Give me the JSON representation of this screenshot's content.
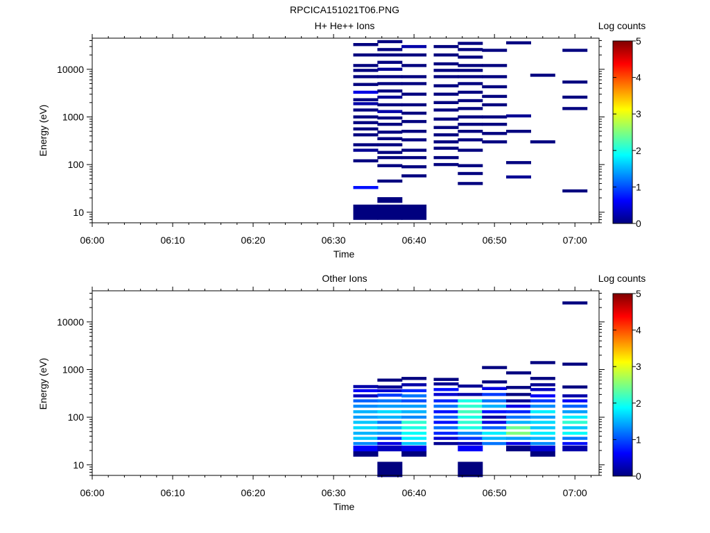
{
  "figure_title": "RPCICA151021T06.PNG",
  "colorbar": {
    "label": "Log counts",
    "ticks": [
      "0",
      "1",
      "2",
      "3",
      "4",
      "5"
    ],
    "colormap": [
      "#00007f",
      "#0000ff",
      "#00ffff",
      "#7fff7f",
      "#ffff00",
      "#ff0000",
      "#7f0000"
    ]
  },
  "chart_data": [
    {
      "type": "heatmap",
      "title": "H+ He++ Ions",
      "xlabel": "Time",
      "ylabel": "Energy (eV)",
      "xlim": [
        "06:00",
        "07:03"
      ],
      "ylim": [
        6,
        45000
      ],
      "yscale": "log",
      "x_tick_labels": [
        "06:00",
        "06:10",
        "06:20",
        "06:30",
        "06:40",
        "06:50",
        "07:00"
      ],
      "y_tick_labels": [
        "10",
        "100",
        "1000",
        "10000"
      ],
      "zlim": [
        0,
        5
      ],
      "columns": [
        "06:34",
        "06:37",
        "06:40",
        "06:44",
        "06:47",
        "06:50",
        "06:53",
        "06:56",
        "07:00"
      ],
      "cells": [
        [
          0,
          10,
          0
        ],
        [
          0,
          33,
          0.7
        ],
        [
          0,
          120,
          0
        ],
        [
          0,
          200,
          0.1
        ],
        [
          0,
          260,
          0
        ],
        [
          0,
          420,
          0
        ],
        [
          0,
          560,
          0
        ],
        [
          0,
          760,
          0
        ],
        [
          0,
          1000,
          0
        ],
        [
          0,
          1400,
          0
        ],
        [
          0,
          1900,
          0.2
        ],
        [
          0,
          2300,
          0
        ],
        [
          0,
          3300,
          0.5
        ],
        [
          0,
          4800,
          0
        ],
        [
          0,
          7000,
          0
        ],
        [
          0,
          9500,
          0
        ],
        [
          0,
          12000,
          0
        ],
        [
          0,
          20000,
          0
        ],
        [
          0,
          33000,
          0
        ],
        [
          1,
          10,
          0
        ],
        [
          1,
          18,
          0
        ],
        [
          1,
          45,
          0
        ],
        [
          1,
          95,
          0
        ],
        [
          1,
          140,
          0
        ],
        [
          1,
          180,
          0
        ],
        [
          1,
          260,
          0
        ],
        [
          1,
          350,
          0
        ],
        [
          1,
          480,
          0
        ],
        [
          1,
          700,
          0
        ],
        [
          1,
          950,
          0
        ],
        [
          1,
          1300,
          0.2
        ],
        [
          1,
          1800,
          0
        ],
        [
          1,
          2600,
          0.1
        ],
        [
          1,
          3500,
          0
        ],
        [
          1,
          5000,
          0
        ],
        [
          1,
          7000,
          0
        ],
        [
          1,
          10000,
          0.1
        ],
        [
          1,
          14000,
          0
        ],
        [
          1,
          20000,
          0
        ],
        [
          1,
          26000,
          0
        ],
        [
          1,
          38000,
          0
        ],
        [
          2,
          10,
          0
        ],
        [
          2,
          58,
          0
        ],
        [
          2,
          90,
          0
        ],
        [
          2,
          140,
          0
        ],
        [
          2,
          200,
          0
        ],
        [
          2,
          330,
          0
        ],
        [
          2,
          500,
          0
        ],
        [
          2,
          800,
          0
        ],
        [
          2,
          1200,
          0
        ],
        [
          2,
          1800,
          0
        ],
        [
          2,
          3000,
          0
        ],
        [
          2,
          5000,
          0
        ],
        [
          2,
          7000,
          0
        ],
        [
          2,
          12000,
          0
        ],
        [
          2,
          20000,
          0
        ],
        [
          2,
          30000,
          0.2
        ],
        [
          3,
          100,
          0
        ],
        [
          3,
          140,
          0
        ],
        [
          3,
          220,
          0
        ],
        [
          3,
          300,
          0
        ],
        [
          3,
          420,
          0
        ],
        [
          3,
          600,
          0
        ],
        [
          3,
          900,
          0
        ],
        [
          3,
          1400,
          0
        ],
        [
          3,
          2000,
          0
        ],
        [
          3,
          3000,
          0
        ],
        [
          3,
          4500,
          0
        ],
        [
          3,
          7000,
          0
        ],
        [
          3,
          9500,
          0
        ],
        [
          3,
          13000,
          0
        ],
        [
          3,
          20000,
          0
        ],
        [
          3,
          30000,
          0
        ],
        [
          4,
          40,
          0
        ],
        [
          4,
          65,
          0
        ],
        [
          4,
          95,
          0
        ],
        [
          4,
          200,
          0
        ],
        [
          4,
          330,
          0
        ],
        [
          4,
          500,
          0
        ],
        [
          4,
          700,
          0
        ],
        [
          4,
          1000,
          0
        ],
        [
          4,
          1500,
          0
        ],
        [
          4,
          2200,
          0
        ],
        [
          4,
          3300,
          0
        ],
        [
          4,
          5000,
          0
        ],
        [
          4,
          7000,
          0
        ],
        [
          4,
          9500,
          0
        ],
        [
          4,
          12000,
          0
        ],
        [
          4,
          18000,
          0
        ],
        [
          4,
          26000,
          0
        ],
        [
          4,
          35000,
          0
        ],
        [
          5,
          300,
          0
        ],
        [
          5,
          450,
          0
        ],
        [
          5,
          700,
          0
        ],
        [
          5,
          1000,
          0
        ],
        [
          5,
          1800,
          0
        ],
        [
          5,
          2700,
          0
        ],
        [
          5,
          4300,
          0
        ],
        [
          5,
          7000,
          0
        ],
        [
          5,
          12000,
          0
        ],
        [
          5,
          25000,
          0
        ],
        [
          6,
          55,
          0.1
        ],
        [
          6,
          110,
          0
        ],
        [
          6,
          500,
          0
        ],
        [
          6,
          1050,
          0.1
        ],
        [
          6,
          36000,
          0
        ],
        [
          7,
          300,
          0
        ],
        [
          7,
          7500,
          0
        ],
        [
          8,
          28,
          0
        ],
        [
          8,
          1500,
          0
        ],
        [
          8,
          2600,
          0
        ],
        [
          8,
          5400,
          0
        ],
        [
          8,
          25000,
          0
        ]
      ]
    },
    {
      "type": "heatmap",
      "title": "Other Ions",
      "xlabel": "Time",
      "ylabel": "Energy (eV)",
      "xlim": [
        "06:00",
        "07:03"
      ],
      "ylim": [
        6,
        45000
      ],
      "yscale": "log",
      "x_tick_labels": [
        "06:00",
        "06:10",
        "06:20",
        "06:30",
        "06:40",
        "06:50",
        "07:00"
      ],
      "y_tick_labels": [
        "10",
        "100",
        "1000",
        "10000"
      ],
      "zlim": [
        0,
        5
      ],
      "columns": [
        "06:34",
        "06:37",
        "06:40",
        "06:44",
        "06:47",
        "06:50",
        "06:53",
        "06:56",
        "07:00"
      ],
      "cells": [
        [
          0,
          17,
          0
        ],
        [
          0,
          22,
          0.6
        ],
        [
          0,
          28,
          1.3
        ],
        [
          0,
          36,
          1.6
        ],
        [
          0,
          46,
          1.5
        ],
        [
          0,
          60,
          1.7
        ],
        [
          0,
          78,
          1.6
        ],
        [
          0,
          100,
          1.4
        ],
        [
          0,
          130,
          1.5
        ],
        [
          0,
          170,
          1.3
        ],
        [
          0,
          220,
          1.1
        ],
        [
          0,
          280,
          0.3
        ],
        [
          0,
          360,
          0.6
        ],
        [
          0,
          440,
          0.2
        ],
        [
          1,
          8,
          0
        ],
        [
          1,
          22,
          0.3
        ],
        [
          1,
          28,
          0.5
        ],
        [
          1,
          36,
          0.9
        ],
        [
          1,
          46,
          1.4
        ],
        [
          1,
          60,
          1.5
        ],
        [
          1,
          78,
          1.2
        ],
        [
          1,
          100,
          1.5
        ],
        [
          1,
          130,
          1.7
        ],
        [
          1,
          170,
          1.4
        ],
        [
          1,
          220,
          1.2
        ],
        [
          1,
          290,
          0.9
        ],
        [
          1,
          360,
          0.4
        ],
        [
          1,
          430,
          0.1
        ],
        [
          1,
          600,
          0
        ],
        [
          2,
          17,
          0
        ],
        [
          2,
          22,
          0.5
        ],
        [
          2,
          28,
          1.6
        ],
        [
          2,
          36,
          1.8
        ],
        [
          2,
          46,
          1.9
        ],
        [
          2,
          60,
          2.0
        ],
        [
          2,
          78,
          2.1
        ],
        [
          2,
          100,
          1.3
        ],
        [
          2,
          130,
          1.5
        ],
        [
          2,
          170,
          1.4
        ],
        [
          2,
          220,
          1.0
        ],
        [
          2,
          280,
          1.2
        ],
        [
          2,
          360,
          0.8
        ],
        [
          2,
          480,
          0.2
        ],
        [
          2,
          650,
          0
        ],
        [
          3,
          28,
          0.1
        ],
        [
          3,
          36,
          0.4
        ],
        [
          3,
          46,
          0.8
        ],
        [
          3,
          60,
          1.2
        ],
        [
          3,
          78,
          0.7
        ],
        [
          3,
          100,
          1.1
        ],
        [
          3,
          130,
          0.7
        ],
        [
          3,
          170,
          1.2
        ],
        [
          3,
          220,
          0.8
        ],
        [
          3,
          300,
          0.4
        ],
        [
          3,
          380,
          0.7
        ],
        [
          3,
          500,
          0.1
        ],
        [
          3,
          620,
          0
        ],
        [
          4,
          8,
          0
        ],
        [
          4,
          22,
          0.6
        ],
        [
          4,
          28,
          0.3
        ],
        [
          4,
          36,
          0.9
        ],
        [
          4,
          46,
          1.3
        ],
        [
          4,
          60,
          2.0
        ],
        [
          4,
          78,
          2.1
        ],
        [
          4,
          100,
          2.0
        ],
        [
          4,
          130,
          2.2
        ],
        [
          4,
          170,
          2.1
        ],
        [
          4,
          220,
          2.0
        ],
        [
          4,
          300,
          0.2
        ],
        [
          4,
          450,
          0.1
        ],
        [
          5,
          28,
          1.2
        ],
        [
          5,
          36,
          1.5
        ],
        [
          5,
          46,
          1.8
        ],
        [
          5,
          60,
          1.1
        ],
        [
          5,
          78,
          0.5
        ],
        [
          5,
          100,
          0.2
        ],
        [
          5,
          130,
          0.7
        ],
        [
          5,
          170,
          1.5
        ],
        [
          5,
          220,
          1.2
        ],
        [
          5,
          300,
          0.9
        ],
        [
          5,
          400,
          0.5
        ],
        [
          5,
          550,
          0
        ],
        [
          5,
          1100,
          0
        ],
        [
          6,
          22,
          0
        ],
        [
          6,
          28,
          0.5
        ],
        [
          6,
          36,
          1.4
        ],
        [
          6,
          46,
          2.5
        ],
        [
          6,
          60,
          2.4
        ],
        [
          6,
          78,
          1.5
        ],
        [
          6,
          100,
          1.2
        ],
        [
          6,
          130,
          0.8
        ],
        [
          6,
          170,
          0.5
        ],
        [
          6,
          220,
          0.1
        ],
        [
          6,
          300,
          0
        ],
        [
          6,
          420,
          0
        ],
        [
          6,
          850,
          0
        ],
        [
          7,
          17,
          0
        ],
        [
          7,
          22,
          0.4
        ],
        [
          7,
          28,
          1.3
        ],
        [
          7,
          36,
          1.5
        ],
        [
          7,
          46,
          1.8
        ],
        [
          7,
          60,
          1.6
        ],
        [
          7,
          78,
          1.7
        ],
        [
          7,
          100,
          1.4
        ],
        [
          7,
          130,
          1.8
        ],
        [
          7,
          170,
          1.3
        ],
        [
          7,
          220,
          0.9
        ],
        [
          7,
          280,
          0.6
        ],
        [
          7,
          380,
          0.3
        ],
        [
          7,
          480,
          0.1
        ],
        [
          7,
          650,
          0
        ],
        [
          7,
          1400,
          0
        ],
        [
          8,
          22,
          0.2
        ],
        [
          8,
          28,
          0.7
        ],
        [
          8,
          36,
          1.2
        ],
        [
          8,
          46,
          1.9
        ],
        [
          8,
          60,
          1.6
        ],
        [
          8,
          78,
          2.1
        ],
        [
          8,
          100,
          1.8
        ],
        [
          8,
          130,
          1.4
        ],
        [
          8,
          170,
          1.1
        ],
        [
          8,
          220,
          0.6
        ],
        [
          8,
          280,
          0.2
        ],
        [
          8,
          430,
          0
        ],
        [
          8,
          1300,
          0
        ],
        [
          8,
          25000,
          0
        ]
      ]
    }
  ]
}
